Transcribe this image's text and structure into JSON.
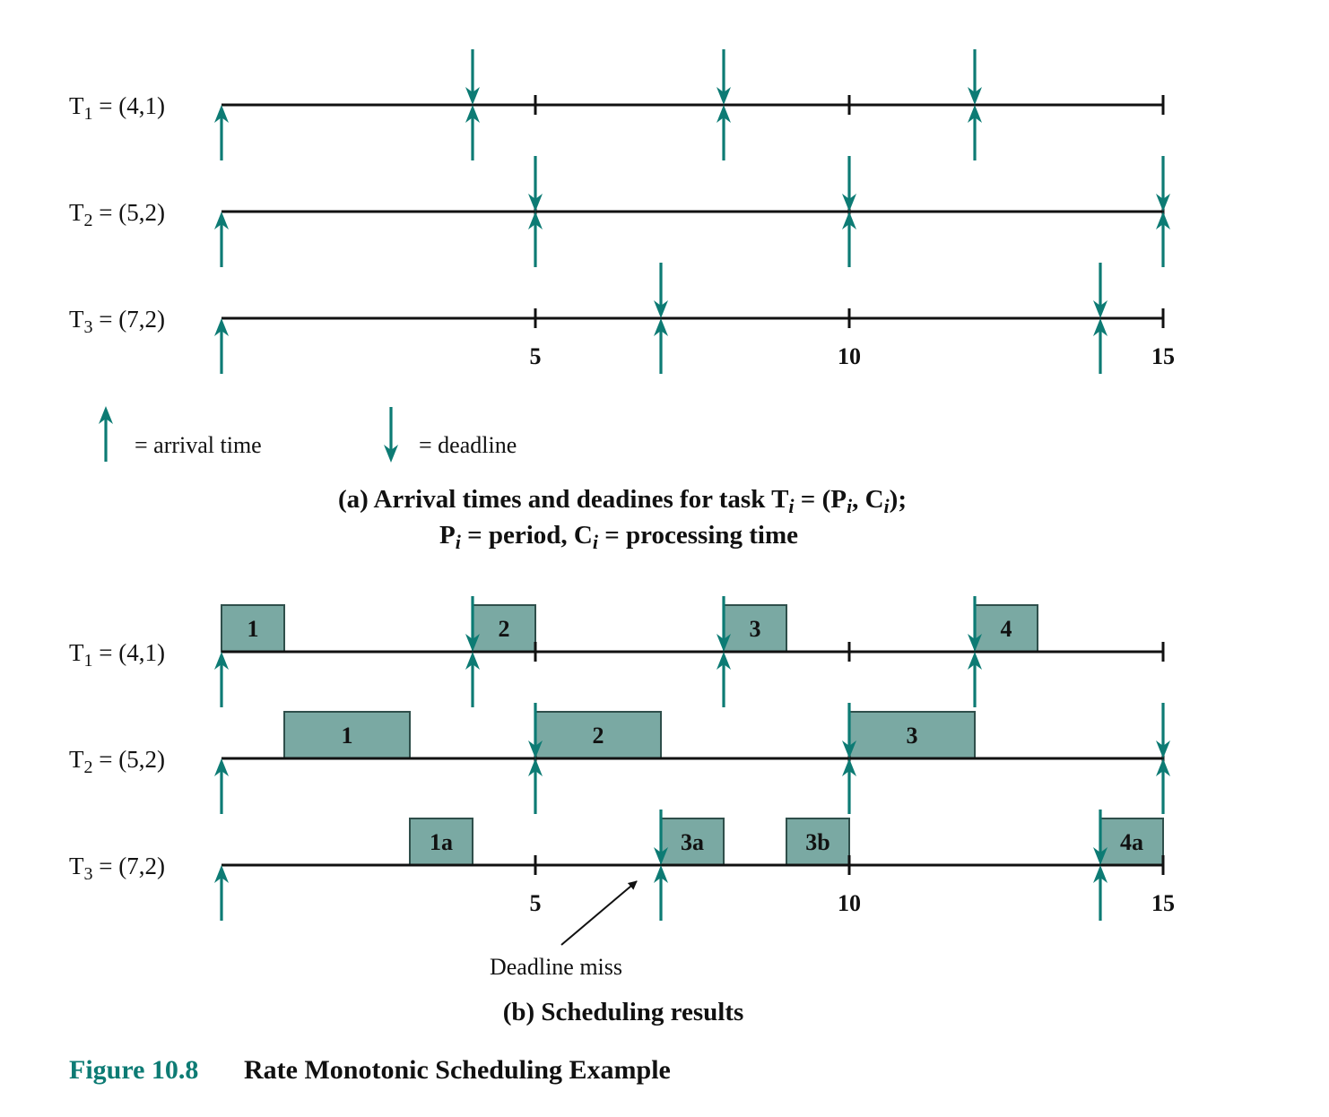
{
  "colors": {
    "arrow": "#0d7b74",
    "box_fill": "#7aa9a3",
    "box_stroke": "#2f4f4b",
    "line": "#111111",
    "caption_accent": "#0d7b74"
  },
  "axis": {
    "max": 15,
    "labeled_ticks": [
      "5",
      "10",
      "15"
    ],
    "tick_values": [
      5,
      10,
      15
    ]
  },
  "tasks": [
    {
      "id": "T1",
      "name": "T",
      "sub": "1",
      "params": " = (4,1)",
      "period": 4,
      "arrivals": [
        0,
        4,
        8,
        12
      ],
      "deadlines": [
        4,
        8,
        12
      ]
    },
    {
      "id": "T2",
      "name": "T",
      "sub": "2",
      "params": " = (5,2)",
      "period": 5,
      "arrivals": [
        0,
        5,
        10,
        15
      ],
      "deadlines": [
        5,
        10,
        15
      ]
    },
    {
      "id": "T3",
      "name": "T",
      "sub": "3",
      "params": " = (7,2)",
      "period": 7,
      "arrivals": [
        0,
        7,
        14
      ],
      "deadlines": [
        7,
        14
      ]
    }
  ],
  "legend": {
    "arrival": "= arrival time",
    "deadline": "= deadline"
  },
  "caption_a": {
    "line1_prefix": "(a) Arrival times and deadines for task T",
    "line1_mid1": " = (P",
    "line1_mid2": ", C",
    "line1_suffix": ");",
    "sub_i": "i",
    "line2_p": "P",
    "line2_mid": " = period, C",
    "line2_suffix": " = processing time"
  },
  "schedule": [
    {
      "task": 0,
      "blocks": [
        {
          "start": 0,
          "end": 1,
          "label": "1"
        },
        {
          "start": 4,
          "end": 5,
          "label": "2"
        },
        {
          "start": 8,
          "end": 9,
          "label": "3"
        },
        {
          "start": 12,
          "end": 13,
          "label": "4"
        }
      ]
    },
    {
      "task": 1,
      "blocks": [
        {
          "start": 1,
          "end": 3,
          "label": "1"
        },
        {
          "start": 5,
          "end": 7,
          "label": "2"
        },
        {
          "start": 10,
          "end": 12,
          "label": "3"
        }
      ]
    },
    {
      "task": 2,
      "blocks": [
        {
          "start": 3,
          "end": 4,
          "label": "1a"
        },
        {
          "start": 7,
          "end": 8,
          "label": "3a"
        },
        {
          "start": 9,
          "end": 10,
          "label": "3b"
        },
        {
          "start": 14,
          "end": 15,
          "label": "4a"
        }
      ]
    }
  ],
  "deadline_miss": {
    "label": "Deadline miss",
    "at": 7
  },
  "caption_b": "(b) Scheduling results",
  "figure": {
    "number": "Figure 10.8",
    "title": "Rate Monotonic Scheduling Example"
  }
}
